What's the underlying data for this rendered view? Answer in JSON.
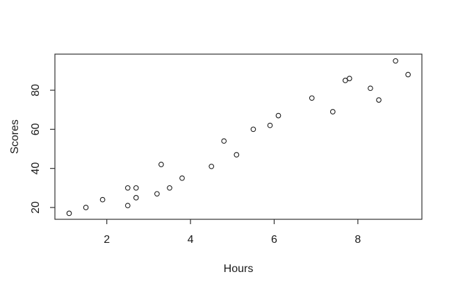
{
  "figure": {
    "background_color": "#ffffff",
    "axis_line_color": "#2e2e2e",
    "text_color": "#1a1a1a",
    "marker_color": "#1a1a1a"
  },
  "chart_data": {
    "type": "scatter",
    "title": "",
    "xlabel": "Hours",
    "ylabel": "Scores",
    "marker": "open-circle",
    "grid": false,
    "legend": "none",
    "x": [
      1.1,
      1.5,
      1.9,
      2.5,
      2.5,
      2.7,
      2.7,
      3.2,
      3.3,
      3.5,
      3.8,
      4.5,
      4.8,
      5.1,
      5.5,
      5.9,
      6.1,
      6.9,
      7.4,
      7.7,
      7.8,
      8.3,
      8.5,
      8.9,
      9.2
    ],
    "y": [
      17,
      20,
      24,
      21,
      30,
      25,
      30,
      27,
      42,
      30,
      35,
      41,
      54,
      47,
      60,
      62,
      67,
      76,
      69,
      85,
      86,
      81,
      75,
      95,
      88
    ],
    "x_ticks": [
      2,
      4,
      6,
      8
    ],
    "y_ticks": [
      20,
      40,
      60,
      80
    ],
    "xlim": [
      0.76,
      9.53
    ],
    "ylim": [
      13.96,
      98.47
    ]
  }
}
